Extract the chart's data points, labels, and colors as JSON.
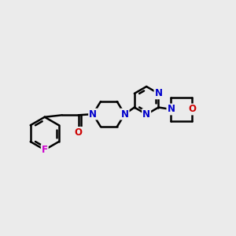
{
  "background_color": "#ebebeb",
  "bond_color": "#000000",
  "bond_width": 1.8,
  "atom_colors": {
    "N": "#0000CC",
    "O": "#CC0000",
    "F": "#CC00CC",
    "C": "#000000"
  },
  "font_size": 8.5,
  "fig_width": 3.0,
  "fig_height": 3.0,
  "dpi": 100,
  "xlim": [
    0,
    12
  ],
  "ylim": [
    0,
    12
  ]
}
